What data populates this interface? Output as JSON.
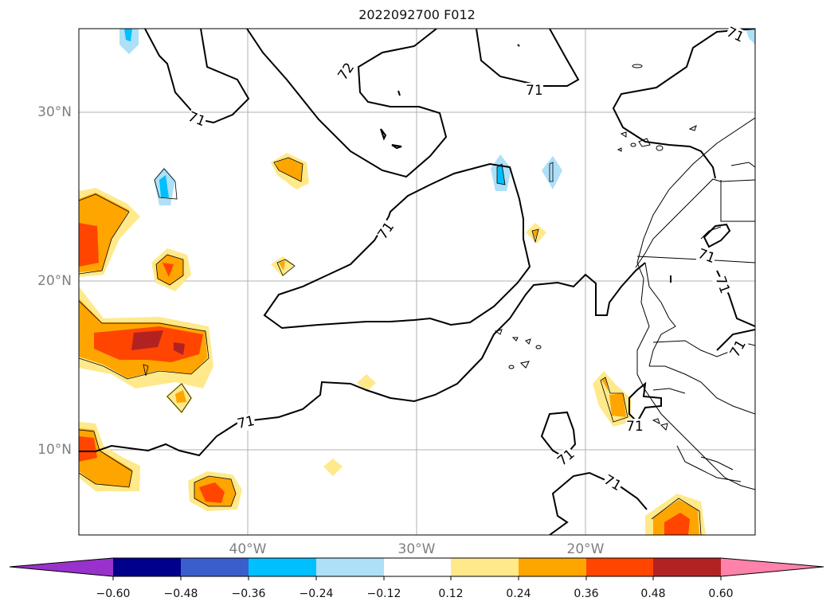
{
  "title": "2022092700 F012",
  "lat_labels": [
    "30°N",
    "20°N",
    "10°N"
  ],
  "lon_labels": [
    "40°W",
    "30°W",
    "20°W"
  ],
  "contour_labels": [
    "72",
    "71",
    "71",
    "71",
    "71",
    "71",
    "71",
    "71",
    "71",
    "71",
    "71"
  ],
  "colorbar": {
    "ticks": [
      "−0.60",
      "−0.48",
      "−0.36",
      "−0.24",
      "−0.12",
      "0.12",
      "0.24",
      "0.36",
      "0.48",
      "0.60"
    ],
    "colors": [
      "#9932cc",
      "#00008b",
      "#3a5fcd",
      "#00bfff",
      "#aee0f7",
      "#ffffff",
      "#ffe98a",
      "#ffa500",
      "#ff4500",
      "#b22222",
      "#ff82ab"
    ]
  }
}
